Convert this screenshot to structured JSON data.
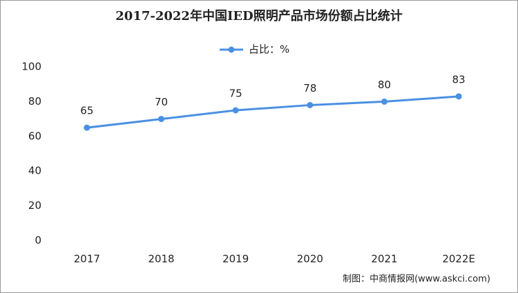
{
  "chart_data": {
    "type": "line",
    "title": "2017-2022年中国IED照明产品市场份额占比统计",
    "categories": [
      "2017",
      "2018",
      "2019",
      "2020",
      "2021",
      "2022E"
    ],
    "series": [
      {
        "name": "占比：%",
        "color": "#4a90e2",
        "values": [
          65,
          70,
          75,
          78,
          80,
          83
        ]
      }
    ],
    "ylim": [
      0,
      100
    ],
    "yticks": [
      0,
      20,
      40,
      60,
      80,
      100
    ],
    "grid": false,
    "legend": "top",
    "source": "制图：中商情报网(www.askci.com)"
  }
}
